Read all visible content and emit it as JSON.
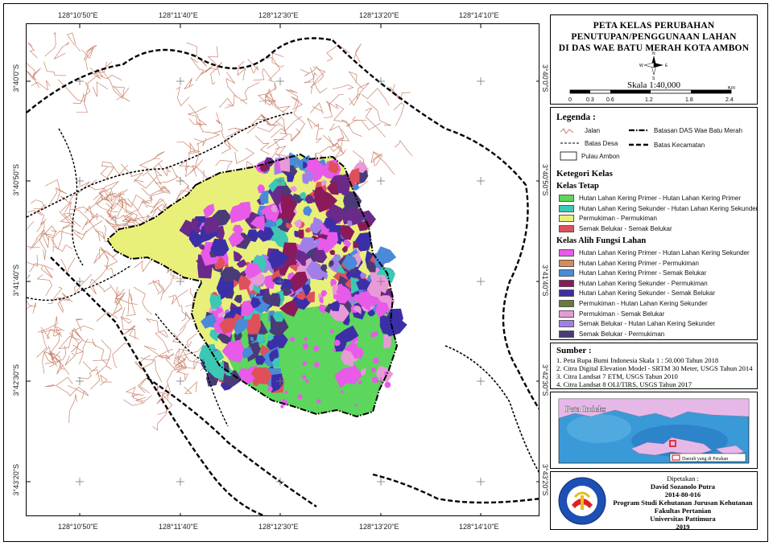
{
  "map": {
    "top_ticks": [
      "128°10'50\"E",
      "128°11'40\"E",
      "128°12'30\"E",
      "128°13'20\"E",
      "128°14'10\"E"
    ],
    "bottom_ticks": [
      "128°10'50\"E",
      "128°11'40\"E",
      "128°12'30\"E",
      "128°13'20\"E",
      "128°14'10\"E"
    ],
    "left_ticks": [
      "3°40'0\"S",
      "3°40'50\"S",
      "3°41'40\"S",
      "3°42'30\"S",
      "3°43'20\"S"
    ],
    "right_ticks": [
      "3°40'0\"S",
      "3°40'50\"S",
      "3°41'40\"S",
      "3°42'30\"S",
      "3°43'20\"S"
    ],
    "colors": {
      "road": "#c8826a",
      "settlement": "#e8f07a",
      "primary_forest": "#5cd65c",
      "secondary_forest": "#3cc8b4",
      "shrub": "#e0505a",
      "magenta": "#e85ae8",
      "navy": "#3b2fa8",
      "purple": "#6a2a8a",
      "dark_slate": "#4a3a78",
      "blue": "#4a8ad8",
      "pink": "#e89ad8"
    }
  },
  "title": {
    "lines": [
      "PETA KELAS PERUBAHAN",
      "PENUTUPAN/PENGGUNAAN LAHAN",
      "DI DAS WAE BATU MERAH KOTA AMBON"
    ],
    "north_letters": [
      "N",
      "S",
      "E",
      "W"
    ],
    "scale": "Skala 1:40,000",
    "scale_unit": "Km",
    "scale_ticks": [
      "0",
      "0.3",
      "0.6",
      "1.2",
      "1.8",
      "2.4"
    ]
  },
  "legend": {
    "heading": "Legenda :",
    "jalan": "Jalan",
    "batas_das": "Batasan DAS Wae Batu Merah",
    "batas_desa": "Batas Desa",
    "batas_kec": "Batas Kecamatan",
    "pulau": "Pulau Ambon",
    "kategori": "Ketegori Kelas",
    "tetap_heading": "Kelas Tetap",
    "tetap": [
      {
        "label": "Hutan Lahan Kering Primer - Hutan Lahan Kering Primer",
        "color": "#5cd65c"
      },
      {
        "label": "Hutan Lahan Kering Sekunder - Hutan Lahan Kering Sekunder",
        "color": "#3cc8b4"
      },
      {
        "label": "Permukiman - Permukiman",
        "color": "#e8f07a"
      },
      {
        "label": "Semak Belukar - Semak Belukar",
        "color": "#e0505a"
      }
    ],
    "alih_heading": "Kelas Alih Fungsi Lahan",
    "alih": [
      {
        "label": "Hutan Lahan Kering Primer - Hutan Lahan Kering Sekunder",
        "color": "#e85ae8"
      },
      {
        "label": "Hutan Lahan Kering Primer - Permukiman",
        "color": "#d88a5a"
      },
      {
        "label": "Hutan Lahan Kering Primer - Semak Belukar",
        "color": "#4a8ad8"
      },
      {
        "label": "Hutan Lahan Kering Sekunder - Permukiman",
        "color": "#8a1a5a"
      },
      {
        "label": "Hutan Lahan Kering Sekunder - Semak Belukar",
        "color": "#3b2fa8"
      },
      {
        "label": "Permukiman - Hutan Lahan Kering Sekunder",
        "color": "#6a7a3a"
      },
      {
        "label": "Permukiman - Semak Belukar",
        "color": "#e89ad8"
      },
      {
        "label": "Semak Belukar - Hutan Lahan Kering Sekunder",
        "color": "#a080e8"
      },
      {
        "label": "Semak Belukar - Permukiman",
        "color": "#4a3a78"
      }
    ]
  },
  "sumber": {
    "heading": "Sumber :",
    "items": [
      "1. Peta Rupa Bumi Indonesia Skala 1 : 50.000 Tahun 2018",
      "2. Citra Digital Elevation Model - SRTM 30 Meter, USGS Tahun 2014",
      "3. Citra Landsat 7 ETM, USGS Tahun 2010",
      "4. Citra Landsat 8 OLI/TIRS, USGS Tahun 2017"
    ]
  },
  "indeks": {
    "heading": "Peta Indeks",
    "box_label": "Daerah yang di Petakan",
    "sea_color": "#3a9ad8",
    "land_color": "#e6b8e8"
  },
  "credit": {
    "dipetakan": "Dipetakan :",
    "name": "David Sozanolo Putra",
    "nim": "2014-80-016",
    "prodi": "Program Studi Kehutanan Jurusan Kehutanan",
    "fakultas": "Fakultas Pertanian",
    "univ": "Universitas Pattimura",
    "year": "2019",
    "logo_top": "UNIVERSITAS PATTIMURA",
    "logo_bottom": "AMBON"
  }
}
